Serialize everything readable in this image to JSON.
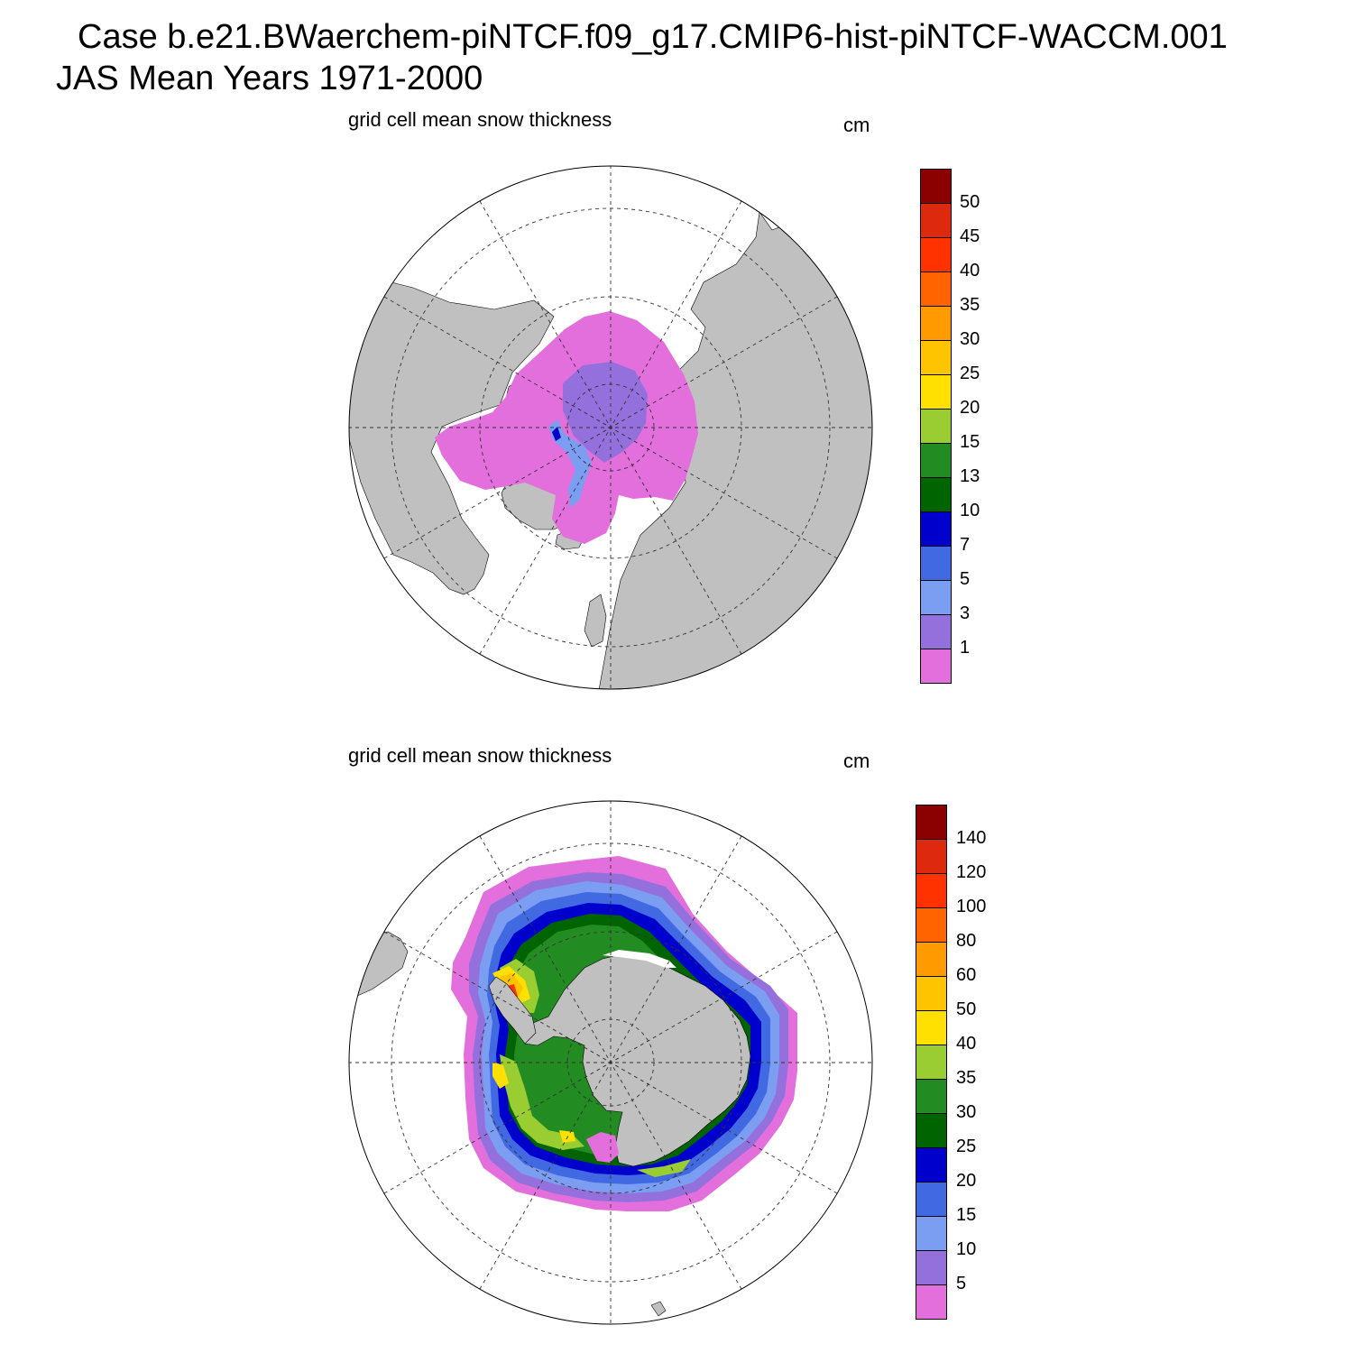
{
  "header": {
    "line1": "Case b.e21.BWaerchem-piNTCF.f09_g17.CMIP6-hist-piNTCF-WACCM.001",
    "line2": "JAS Mean   Years 1971-2000"
  },
  "colors": {
    "land": "#c0c0c0",
    "ocean": "#ffffff",
    "scale": [
      "#e36fdc",
      "#9370db",
      "#7b9ef2",
      "#4169e1",
      "#0000cd",
      "#006400",
      "#228b22",
      "#9acd32",
      "#ffe000",
      "#ffc400",
      "#ff9a00",
      "#ff6400",
      "#ff3200",
      "#dd2a0f",
      "#8b0000"
    ]
  },
  "chart_data": [
    {
      "type": "heatmap",
      "title": "grid cell mean snow thickness",
      "units": "cm",
      "region": "Northern Hemisphere (polar stereographic)",
      "colorbar_levels": [
        "50",
        "45",
        "40",
        "35",
        "30",
        "25",
        "20",
        "15",
        "13",
        "10",
        "7",
        "5",
        "3",
        "1"
      ],
      "grid": true
    },
    {
      "type": "heatmap",
      "title": "grid cell mean snow thickness",
      "units": "cm",
      "region": "Southern Hemisphere (polar stereographic)",
      "colorbar_levels": [
        "140",
        "120",
        "100",
        "80",
        "60",
        "50",
        "40",
        "35",
        "30",
        "25",
        "20",
        "15",
        "10",
        "5"
      ],
      "grid": true
    }
  ]
}
